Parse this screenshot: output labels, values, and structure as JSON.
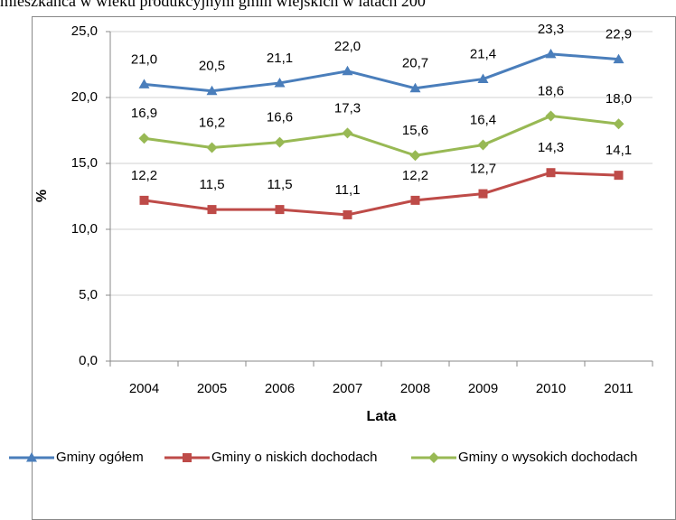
{
  "chart_data": {
    "type": "line",
    "title": "mieszkańca w wieku produkcyjnym gmin wiejskich w latach 200",
    "x_label": "Lata",
    "y_label": "%",
    "categories": [
      "2004",
      "2005",
      "2006",
      "2007",
      "2008",
      "2009",
      "2010",
      "2011"
    ],
    "series": [
      {
        "name": "Gminy ogółem",
        "color": "#4a7ebb",
        "marker": "triangle",
        "values": [
          21.0,
          20.5,
          21.1,
          22.0,
          20.7,
          21.4,
          23.3,
          22.9
        ],
        "value_labels": [
          "21,0",
          "20,5",
          "21,1",
          "22,0",
          "20,7",
          "21,4",
          "23,3",
          "22,9"
        ]
      },
      {
        "name": "Gminy o niskich dochodach",
        "color": "#be4b48",
        "marker": "square",
        "values": [
          12.2,
          11.5,
          11.5,
          11.1,
          12.2,
          12.7,
          14.3,
          14.1
        ],
        "value_labels": [
          "12,2",
          "11,5",
          "11,5",
          "11,1",
          "12,2",
          "12,7",
          "14,3",
          "14,1"
        ]
      },
      {
        "name": "Gminy o wysokich dochodach",
        "color": "#98b954",
        "marker": "diamond",
        "values": [
          16.9,
          16.2,
          16.6,
          17.3,
          15.6,
          16.4,
          18.6,
          18.0
        ],
        "value_labels": [
          "16,9",
          "16,2",
          "16,6",
          "17,3",
          "15,6",
          "16,4",
          "18,6",
          "18,0"
        ]
      }
    ],
    "ylim": [
      0,
      25
    ],
    "yticks": [
      {
        "value": 0,
        "label": "0,0"
      },
      {
        "value": 5,
        "label": "5,0"
      },
      {
        "value": 10,
        "label": "10,0"
      },
      {
        "value": 15,
        "label": "15,0"
      },
      {
        "value": 20,
        "label": "20,0"
      },
      {
        "value": 25,
        "label": "25,0"
      }
    ],
    "grid": true,
    "legend": "bottom"
  }
}
